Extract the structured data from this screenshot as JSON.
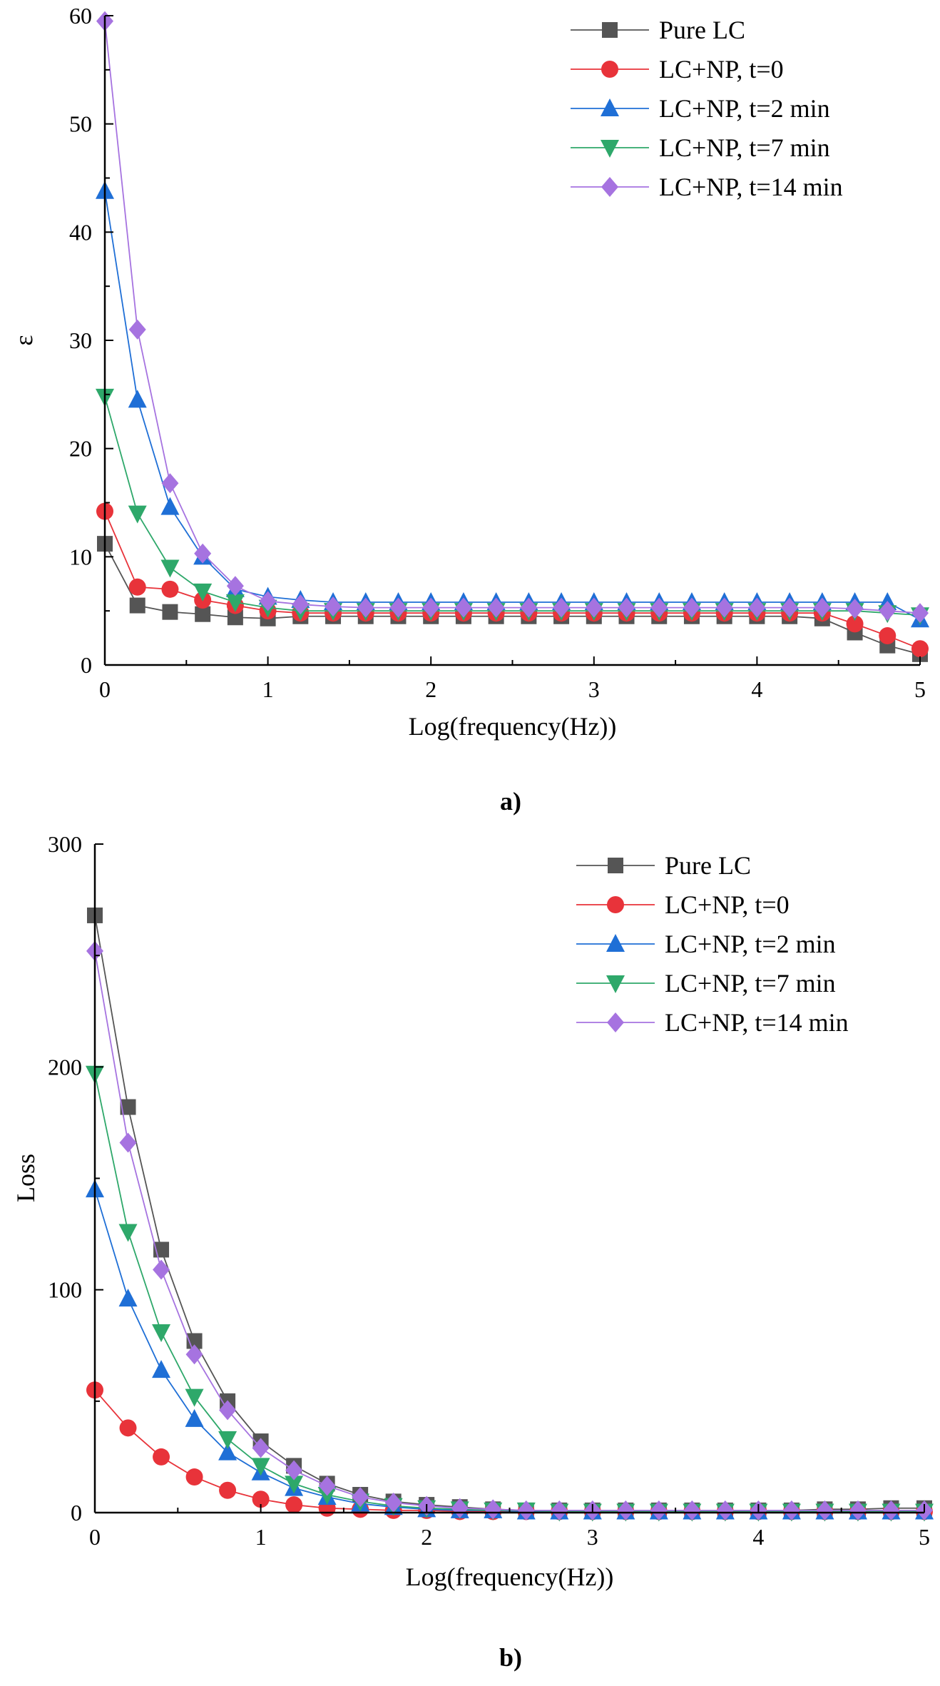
{
  "chart_data": [
    {
      "type": "line",
      "panel_label": "a)",
      "xlabel": "Log(frequency(Hz))",
      "ylabel": "ε",
      "xlim": [
        0,
        5
      ],
      "ylim": [
        0,
        60
      ],
      "xticks": [
        0,
        1,
        2,
        3,
        4,
        5
      ],
      "yticks": [
        0,
        10,
        20,
        30,
        40,
        50,
        60
      ],
      "legend_position": "top-right",
      "grid": false,
      "x": [
        0,
        0.2,
        0.4,
        0.6,
        0.8,
        1.0,
        1.2,
        1.4,
        1.6,
        1.8,
        2.0,
        2.2,
        2.4,
        2.6,
        2.8,
        3.0,
        3.2,
        3.4,
        3.6,
        3.8,
        4.0,
        4.2,
        4.4,
        4.6,
        4.8,
        5.0
      ],
      "series": [
        {
          "name": "Pure LC",
          "color": "#555555",
          "marker": "square",
          "values": [
            11.2,
            5.5,
            4.9,
            4.7,
            4.4,
            4.3,
            4.5,
            4.5,
            4.5,
            4.5,
            4.5,
            4.5,
            4.5,
            4.5,
            4.5,
            4.5,
            4.5,
            4.5,
            4.5,
            4.5,
            4.5,
            4.5,
            4.3,
            3.0,
            1.8,
            1.0
          ]
        },
        {
          "name": "LC+NP, t=0",
          "color": "#e8333a",
          "marker": "circle",
          "values": [
            14.2,
            7.2,
            7.0,
            6.0,
            5.5,
            5.0,
            4.8,
            4.8,
            4.8,
            4.8,
            4.8,
            4.8,
            4.8,
            4.8,
            4.8,
            4.8,
            4.8,
            4.8,
            4.8,
            4.8,
            4.8,
            4.8,
            4.8,
            3.8,
            2.7,
            1.5
          ]
        },
        {
          "name": "LC+NP, t=2 min",
          "color": "#1f6fd6",
          "marker": "triangle-up",
          "values": [
            43.8,
            24.5,
            14.6,
            10.0,
            7.0,
            6.3,
            6.0,
            5.8,
            5.8,
            5.8,
            5.8,
            5.8,
            5.8,
            5.8,
            5.8,
            5.8,
            5.8,
            5.8,
            5.8,
            5.8,
            5.8,
            5.8,
            5.8,
            5.8,
            5.8,
            4.2
          ]
        },
        {
          "name": "LC+NP, t=7 min",
          "color": "#2ea86a",
          "marker": "triangle-down",
          "values": [
            24.8,
            14.0,
            9.0,
            6.8,
            5.8,
            5.3,
            5.0,
            5.0,
            5.0,
            5.0,
            5.0,
            5.0,
            5.0,
            5.0,
            5.0,
            5.0,
            5.0,
            5.0,
            5.0,
            5.0,
            5.0,
            5.0,
            5.0,
            5.0,
            4.8,
            4.6
          ]
        },
        {
          "name": "LC+NP, t=14 min",
          "color": "#a673e0",
          "marker": "diamond",
          "values": [
            59.5,
            31.0,
            16.8,
            10.3,
            7.3,
            5.9,
            5.6,
            5.4,
            5.3,
            5.3,
            5.3,
            5.3,
            5.3,
            5.3,
            5.3,
            5.3,
            5.3,
            5.3,
            5.3,
            5.3,
            5.3,
            5.3,
            5.3,
            5.2,
            5.0,
            4.8
          ]
        }
      ]
    },
    {
      "type": "line",
      "panel_label": "b)",
      "xlabel": "Log(frequency(Hz))",
      "ylabel": "Loss",
      "xlim": [
        0,
        5
      ],
      "ylim": [
        0,
        300
      ],
      "xticks": [
        0,
        1,
        2,
        3,
        4,
        5
      ],
      "yticks": [
        0,
        100,
        200,
        300
      ],
      "legend_position": "top-right",
      "grid": false,
      "x": [
        0,
        0.2,
        0.4,
        0.6,
        0.8,
        1.0,
        1.2,
        1.4,
        1.6,
        1.8,
        2.0,
        2.2,
        2.4,
        2.6,
        2.8,
        3.0,
        3.2,
        3.4,
        3.6,
        3.8,
        4.0,
        4.2,
        4.4,
        4.6,
        4.8,
        5.0
      ],
      "series": [
        {
          "name": "Pure LC",
          "color": "#555555",
          "marker": "square",
          "values": [
            268,
            182,
            118,
            77,
            50,
            32,
            21,
            13,
            8,
            5,
            3.5,
            2.5,
            1.5,
            1,
            1,
            1,
            1,
            1,
            1,
            1,
            1,
            1,
            1.5,
            1.5,
            2,
            2
          ]
        },
        {
          "name": "LC+NP, t=0",
          "color": "#e8333a",
          "marker": "circle",
          "values": [
            55,
            38,
            25,
            16,
            10,
            6,
            3.5,
            2,
            1.5,
            1,
            1,
            0.5,
            0.5,
            0.5,
            0.5,
            0.5,
            0.5,
            0.5,
            0.5,
            0.5,
            0.5,
            0.5,
            0.5,
            0.5,
            0.5,
            0.5
          ]
        },
        {
          "name": "LC+NP, t=2 min",
          "color": "#1f6fd6",
          "marker": "triangle-up",
          "values": [
            145,
            96,
            64,
            42,
            27,
            18,
            11,
            7,
            4,
            2.5,
            1.5,
            1,
            1,
            0.5,
            0.5,
            0.5,
            0.5,
            0.5,
            0.5,
            0.5,
            0.5,
            0.5,
            0.5,
            0.5,
            0.5,
            0.5
          ]
        },
        {
          "name": "LC+NP, t=7 min",
          "color": "#2ea86a",
          "marker": "triangle-down",
          "values": [
            197,
            126,
            81,
            52,
            33,
            21,
            13,
            8,
            5,
            3,
            2,
            1.5,
            1,
            1,
            0.5,
            0.5,
            0.5,
            0.5,
            0.5,
            0.5,
            0.5,
            0.5,
            0.5,
            0.5,
            0.5,
            0.5
          ]
        },
        {
          "name": "LC+NP, t=14 min",
          "color": "#a673e0",
          "marker": "diamond",
          "values": [
            252,
            166,
            109,
            71,
            46,
            29,
            19,
            12,
            7,
            4.5,
            3,
            2,
            1.5,
            1,
            1,
            1,
            1,
            1,
            1,
            1,
            1,
            1,
            1,
            1,
            1,
            1
          ]
        }
      ]
    }
  ]
}
